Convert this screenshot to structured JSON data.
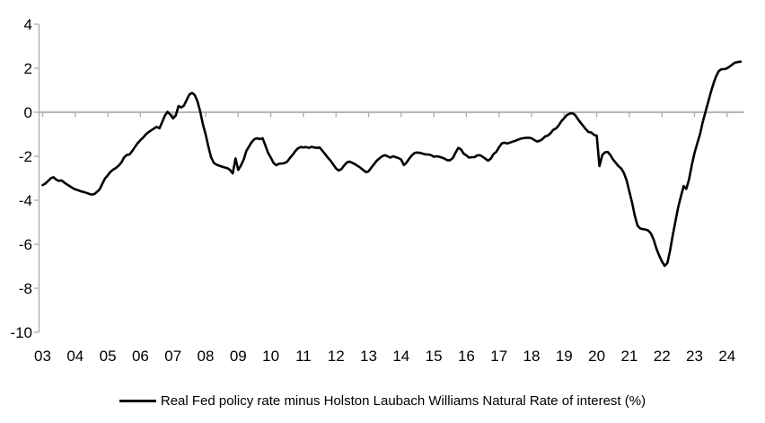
{
  "colors": {
    "line": "#000000",
    "axis": "#ACACAC",
    "text": "#000000",
    "background": "#FFFFFF"
  },
  "chart_data": {
    "type": "line",
    "title": "",
    "xlabel": "",
    "ylabel": "",
    "grid": false,
    "zero_axis_line": true,
    "x_axis": {
      "tick_labels": [
        "03",
        "04",
        "05",
        "06",
        "07",
        "08",
        "09",
        "10",
        "11",
        "12",
        "13",
        "14",
        "15",
        "16",
        "17",
        "18",
        "19",
        "20",
        "21",
        "22",
        "23",
        "24"
      ],
      "tick_interval": "1 year",
      "range_years": [
        2003,
        2024.5
      ]
    },
    "y_axis": {
      "tick_labels": [
        "4",
        "2",
        "0",
        "-2",
        "-4",
        "-6",
        "-8",
        "-10"
      ],
      "min": -10,
      "max": 4
    },
    "legend": {
      "position": "bottom-center",
      "entries": [
        {
          "label": "Real Fed policy rate minus Holston Laubach Williams Natural Rate of interest (%)",
          "color": "#000000"
        }
      ]
    },
    "series": [
      {
        "name": "Real Fed policy rate minus Holston Laubach Williams Natural Rate of interest (%)",
        "color": "#000000",
        "frequency": "monthly",
        "start": "2003-01",
        "end": "2024-06",
        "values": [
          -3.31,
          -3.24,
          -3.12,
          -3.0,
          -2.95,
          -3.06,
          -3.12,
          -3.1,
          -3.2,
          -3.28,
          -3.36,
          -3.44,
          -3.5,
          -3.54,
          -3.59,
          -3.62,
          -3.66,
          -3.7,
          -3.74,
          -3.72,
          -3.62,
          -3.5,
          -3.25,
          -3.0,
          -2.86,
          -2.7,
          -2.6,
          -2.53,
          -2.42,
          -2.28,
          -2.05,
          -1.94,
          -1.92,
          -1.76,
          -1.58,
          -1.4,
          -1.27,
          -1.15,
          -1.0,
          -0.9,
          -0.82,
          -0.74,
          -0.66,
          -0.73,
          -0.45,
          -0.15,
          0.02,
          -0.1,
          -0.28,
          -0.15,
          0.28,
          0.22,
          0.3,
          0.55,
          0.8,
          0.88,
          0.78,
          0.5,
          0.05,
          -0.55,
          -1.0,
          -1.55,
          -2.05,
          -2.3,
          -2.38,
          -2.43,
          -2.47,
          -2.51,
          -2.54,
          -2.62,
          -2.78,
          -2.1,
          -2.62,
          -2.42,
          -2.15,
          -1.75,
          -1.55,
          -1.35,
          -1.22,
          -1.18,
          -1.22,
          -1.18,
          -1.5,
          -1.85,
          -2.06,
          -2.3,
          -2.41,
          -2.34,
          -2.33,
          -2.31,
          -2.25,
          -2.08,
          -1.94,
          -1.77,
          -1.64,
          -1.58,
          -1.6,
          -1.58,
          -1.62,
          -1.57,
          -1.6,
          -1.62,
          -1.6,
          -1.75,
          -1.9,
          -2.06,
          -2.2,
          -2.38,
          -2.55,
          -2.65,
          -2.58,
          -2.42,
          -2.28,
          -2.24,
          -2.3,
          -2.36,
          -2.44,
          -2.52,
          -2.62,
          -2.72,
          -2.68,
          -2.52,
          -2.36,
          -2.2,
          -2.1,
          -2.0,
          -1.95,
          -2.0,
          -2.06,
          -2.0,
          -2.04,
          -2.08,
          -2.15,
          -2.4,
          -2.28,
          -2.1,
          -1.95,
          -1.85,
          -1.83,
          -1.85,
          -1.88,
          -1.92,
          -1.92,
          -1.95,
          -2.02,
          -2.0,
          -2.02,
          -2.06,
          -2.11,
          -2.18,
          -2.18,
          -2.08,
          -1.84,
          -1.62,
          -1.68,
          -1.88,
          -1.96,
          -2.06,
          -2.04,
          -2.04,
          -1.96,
          -1.95,
          -2.02,
          -2.11,
          -2.2,
          -2.11,
          -1.9,
          -1.8,
          -1.6,
          -1.42,
          -1.38,
          -1.42,
          -1.38,
          -1.34,
          -1.3,
          -1.25,
          -1.2,
          -1.18,
          -1.16,
          -1.16,
          -1.18,
          -1.26,
          -1.33,
          -1.3,
          -1.22,
          -1.1,
          -1.06,
          -0.95,
          -0.8,
          -0.74,
          -0.6,
          -0.4,
          -0.27,
          -0.13,
          -0.06,
          -0.04,
          -0.12,
          -0.3,
          -0.46,
          -0.62,
          -0.77,
          -0.9,
          -0.92,
          -1.03,
          -1.06,
          -2.45,
          -1.95,
          -1.82,
          -1.8,
          -1.94,
          -2.15,
          -2.3,
          -2.45,
          -2.55,
          -2.75,
          -3.1,
          -3.6,
          -4.1,
          -4.7,
          -5.15,
          -5.28,
          -5.31,
          -5.33,
          -5.38,
          -5.52,
          -5.8,
          -6.2,
          -6.52,
          -6.78,
          -6.98,
          -6.85,
          -6.28,
          -5.58,
          -4.95,
          -4.32,
          -3.82,
          -3.35,
          -3.48,
          -3.05,
          -2.4,
          -1.85,
          -1.42,
          -1.0,
          -0.45,
          0.0,
          0.45,
          0.9,
          1.32,
          1.65,
          1.88,
          1.96,
          1.96,
          2.0,
          2.08,
          2.18,
          2.26,
          2.28,
          2.3
        ]
      }
    ]
  }
}
